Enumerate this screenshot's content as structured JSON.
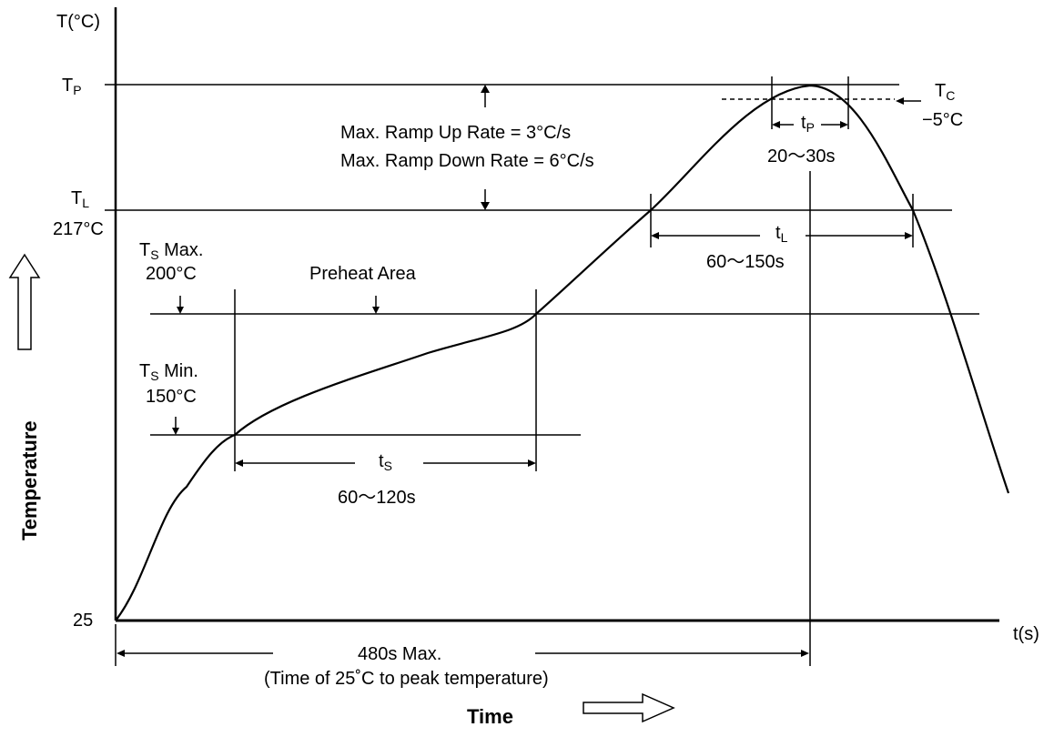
{
  "diagram": {
    "y_axis_unit": "T(°C)",
    "x_axis_unit": "t(s)",
    "y_axis_label": "Temperature",
    "x_axis_label": "Time",
    "y_origin_label": "25",
    "tp": {
      "main": "T",
      "sub": "P"
    },
    "tl": {
      "main": "T",
      "sub": "L",
      "value": "217°C"
    },
    "ts_max": {
      "main": "T",
      "sub": "S",
      "suffix": " Max.",
      "value": "200°C"
    },
    "ts_min": {
      "main": "T",
      "sub": "S",
      "suffix": " Min.",
      "value": "150°C"
    },
    "tc": {
      "main": "T",
      "sub": "C",
      "value": "−5°C"
    },
    "ramp_up": "Max. Ramp Up Rate = 3°C/s",
    "ramp_down": "Max. Ramp Down Rate = 6°C/s",
    "preheat": "Preheat Area",
    "t_s": {
      "main": "t",
      "sub": "S",
      "value": "60～120s"
    },
    "t_l": {
      "main": "t",
      "sub": "L",
      "value": "60～150s"
    },
    "t_p": {
      "main": "t",
      "sub": "P",
      "value": "20～30s"
    },
    "total_time": "480s Max.",
    "total_time_note": "(Time of 25˚C  to peak temperature)"
  }
}
